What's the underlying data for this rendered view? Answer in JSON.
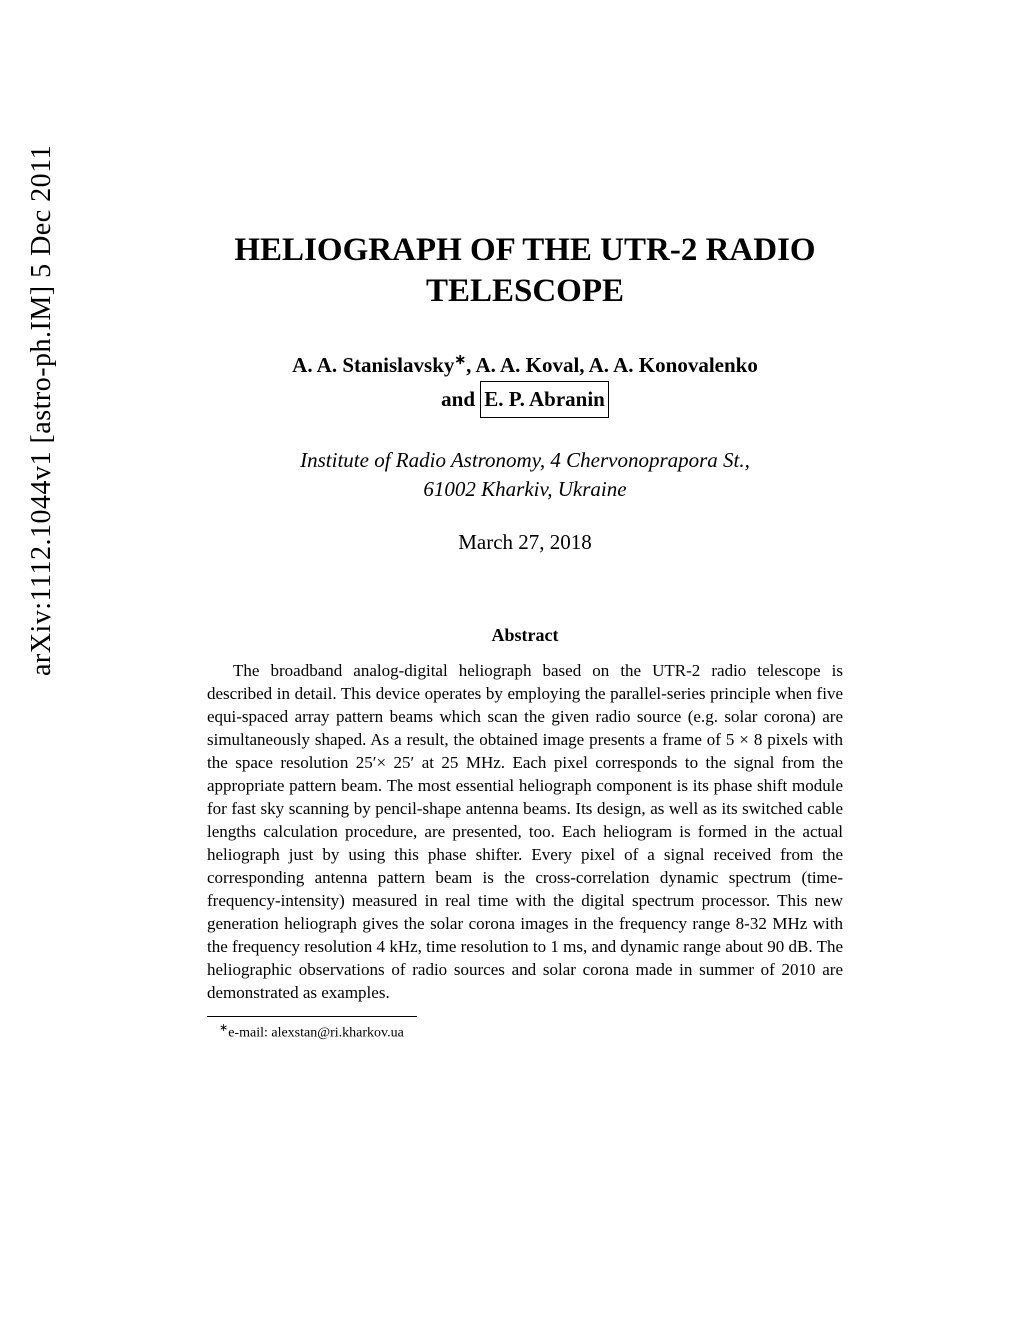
{
  "arxiv_id": "arXiv:1112.1044v1  [astro-ph.IM]  5 Dec 2011",
  "title_line1": "HELIOGRAPH OF THE UTR-2 RADIO",
  "title_line2": "TELESCOPE",
  "authors_line1_pre": "A. A. Stanislavsky",
  "authors_line1_sup": "∗",
  "authors_line1_post": ", A. A. Koval, A. A. Konovalenko",
  "authors_line2_pre": "and ",
  "authors_line2_boxed": "E. P. Abranin",
  "affiliation_line1": "Institute of Radio Astronomy, 4 Chervonoprapora St.,",
  "affiliation_line2": "61002 Kharkiv, Ukraine",
  "date": "March 27, 2018",
  "abstract_heading": "Abstract",
  "abstract": "The broadband analog-digital heliograph based on the UTR-2 radio telescope is described in detail. This device operates by employing the parallel-series principle when five equi-spaced array pattern beams which scan the given radio source (e.g. solar corona) are simultaneously shaped. As a result, the obtained image presents a frame of 5 × 8 pixels with the space resolution 25′× 25′ at 25 MHz. Each pixel corresponds to the signal from the appropriate pattern beam. The most essential heliograph component is its phase shift module for fast sky scanning by pencil-shape antenna beams. Its design, as well as its switched cable lengths calculation procedure, are presented, too. Each heliogram is formed in the actual heliograph just by using this phase shifter. Every pixel of a signal received from the corresponding antenna pattern beam is the cross-correlation dynamic spectrum (time-frequency-intensity) measured in real time with the digital spectrum processor. This new generation heliograph gives the solar corona images in the frequency range 8-32 MHz with the frequency resolution 4 kHz, time resolution to 1 ms, and dynamic range about 90 dB. The heliographic observations of radio sources and solar corona made in summer of 2010 are demonstrated as examples.",
  "footnote_marker": "∗",
  "footnote_text": "e-mail: alexstan@ri.kharkov.ua"
}
